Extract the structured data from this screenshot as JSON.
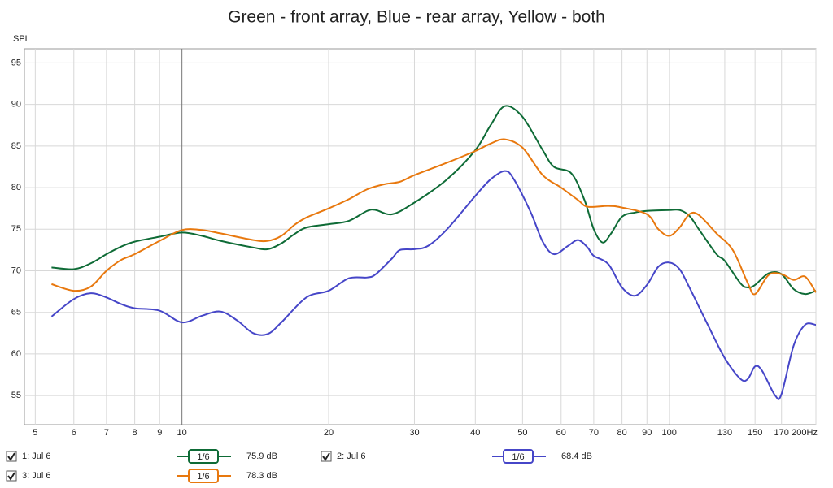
{
  "chart_data": {
    "type": "line",
    "title": "Green - front array, Blue - rear array, Yellow - both",
    "y_label": "SPL",
    "x_log": true,
    "grid": true,
    "xlim": [
      4.75,
      200
    ],
    "ylim": [
      51.5,
      96.7
    ],
    "xticks": [
      5,
      6,
      7,
      8,
      9,
      10,
      20,
      30,
      40,
      50,
      60,
      70,
      80,
      90,
      100,
      130,
      150,
      170,
      {
        "value": 200,
        "label": "200Hz"
      }
    ],
    "yticks": [
      55,
      60,
      65,
      70,
      75,
      80,
      85,
      90,
      95
    ],
    "series": [
      {
        "name": "1: Jul 6",
        "color": "#0e6b36",
        "smoothing": "1/6",
        "level": "75.9 dB",
        "x": [
          5.4,
          6,
          6.5,
          7,
          7.5,
          8,
          9,
          10,
          11,
          12,
          14,
          15,
          16,
          17,
          18,
          20,
          22,
          24,
          25,
          27,
          30,
          35,
          40,
          43,
          46,
          50,
          55,
          58,
          63,
          67,
          70,
          73,
          76,
          80,
          85,
          90,
          100,
          105,
          110,
          115,
          125,
          130,
          140,
          145,
          150,
          160,
          170,
          180,
          190,
          200
        ],
        "values": [
          70.4,
          70.2,
          70.9,
          72.0,
          72.9,
          73.5,
          74.1,
          74.6,
          74.2,
          73.6,
          72.8,
          72.6,
          73.3,
          74.4,
          75.2,
          75.6,
          76.0,
          77.2,
          77.3,
          76.8,
          78.2,
          81.0,
          84.5,
          87.5,
          89.8,
          88.5,
          84.5,
          82.5,
          81.7,
          78.5,
          75.0,
          73.4,
          74.5,
          76.5,
          77.0,
          77.2,
          77.3,
          77.3,
          76.6,
          75.0,
          72.0,
          71.2,
          68.5,
          68.0,
          68.3,
          69.7,
          69.6,
          67.8,
          67.2,
          67.6
        ]
      },
      {
        "name": "2: Jul 6",
        "color": "#4646c8",
        "smoothing": "1/6",
        "level": "68.4 dB",
        "x": [
          5.4,
          6,
          6.5,
          7,
          7.5,
          8,
          9,
          10,
          11,
          12,
          13,
          14,
          15,
          16,
          18,
          20,
          22,
          24,
          25,
          27,
          28,
          30,
          32,
          35,
          40,
          43,
          46,
          48,
          52,
          55,
          58,
          62,
          65,
          68,
          70,
          75,
          80,
          85,
          90,
          95,
          100,
          105,
          110,
          120,
          130,
          140,
          145,
          150,
          155,
          165,
          170,
          180,
          190,
          200
        ],
        "values": [
          64.5,
          66.6,
          67.3,
          66.8,
          66.0,
          65.5,
          65.2,
          63.8,
          64.6,
          65.1,
          64.0,
          62.5,
          62.4,
          63.8,
          66.8,
          67.6,
          69.1,
          69.2,
          69.6,
          71.5,
          72.5,
          72.6,
          73.0,
          75.0,
          79.0,
          81.0,
          82.0,
          81.0,
          77.0,
          73.5,
          72.0,
          73.0,
          73.7,
          72.8,
          71.8,
          70.8,
          68.0,
          67.0,
          68.3,
          70.5,
          71.0,
          70.2,
          68.0,
          63.5,
          59.5,
          57.0,
          57.0,
          58.5,
          58.0,
          55.0,
          55.2,
          61.0,
          63.5,
          63.5
        ]
      },
      {
        "name": "3: Jul 6",
        "color": "#e8780e",
        "smoothing": "1/6",
        "level": "78.3 dB",
        "x": [
          5.4,
          6,
          6.5,
          7,
          7.5,
          8,
          9,
          10,
          11,
          12,
          14,
          15,
          16,
          17,
          18,
          20,
          22,
          24,
          26,
          28,
          30,
          35,
          40,
          43,
          46,
          50,
          55,
          60,
          65,
          68,
          75,
          80,
          90,
          95,
          100,
          105,
          110,
          115,
          125,
          135,
          145,
          150,
          160,
          170,
          180,
          190,
          200
        ],
        "values": [
          68.4,
          67.6,
          68.1,
          70.0,
          71.3,
          72.0,
          73.6,
          74.9,
          74.9,
          74.5,
          73.7,
          73.6,
          74.2,
          75.5,
          76.4,
          77.5,
          78.6,
          79.8,
          80.4,
          80.7,
          81.5,
          83.0,
          84.4,
          85.3,
          85.8,
          84.8,
          81.5,
          80.0,
          78.5,
          77.7,
          77.8,
          77.6,
          76.8,
          75.0,
          74.2,
          75.2,
          76.8,
          76.7,
          74.5,
          72.5,
          68.5,
          67.2,
          69.5,
          69.6,
          68.9,
          69.3,
          67.4
        ]
      }
    ]
  }
}
